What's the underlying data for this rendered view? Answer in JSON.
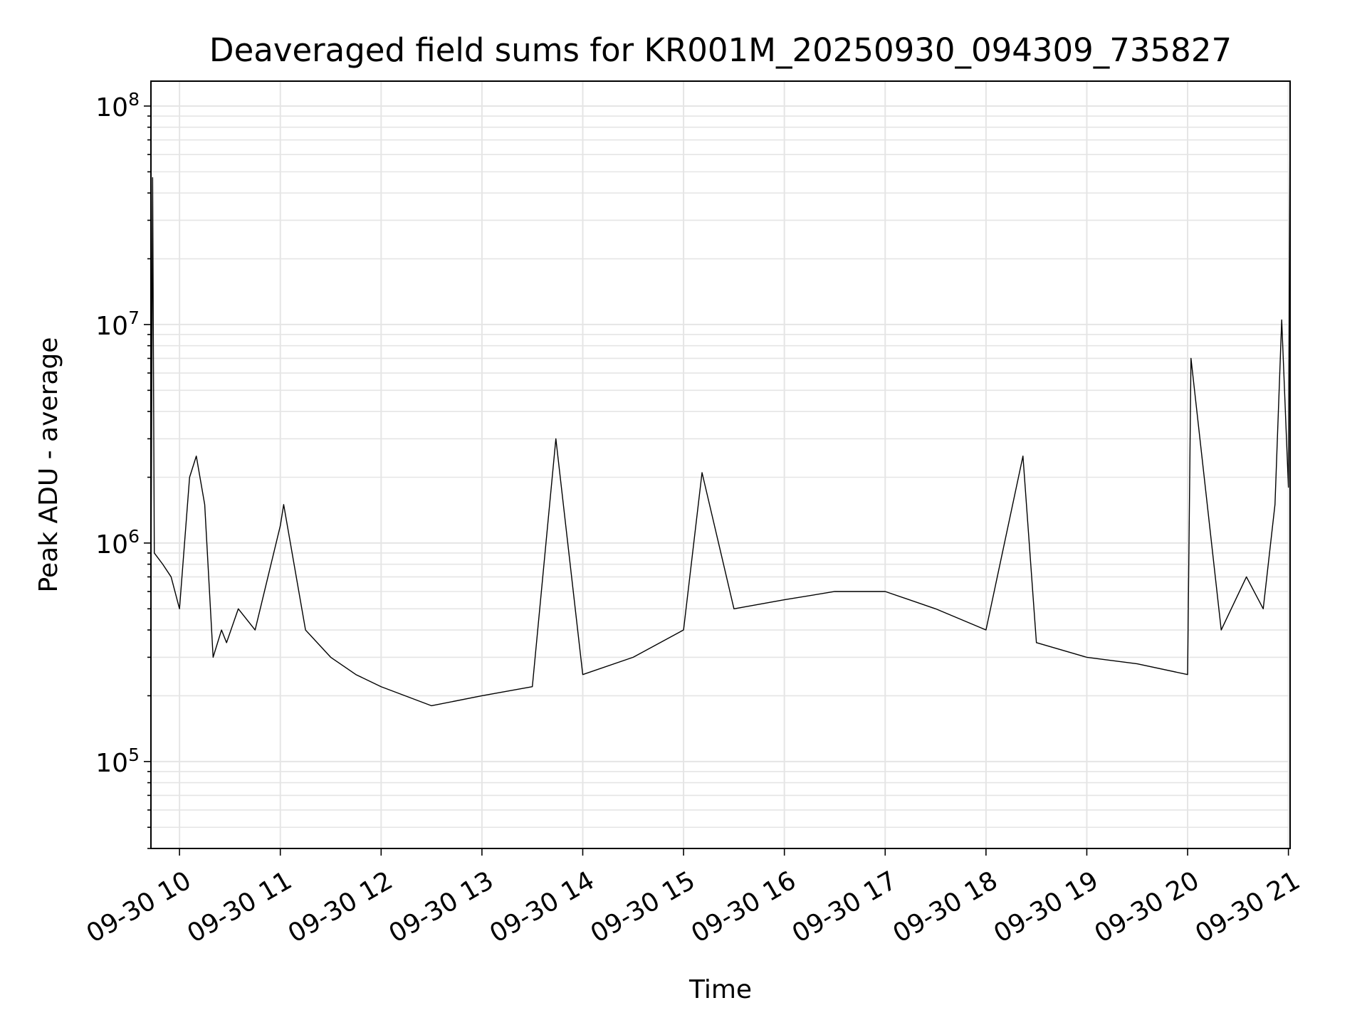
{
  "chart_data": {
    "type": "line",
    "title": "Deaveraged field sums for KR001M_20250930_094309_735827",
    "xlabel": "Time",
    "ylabel": "Peak ADU - average",
    "yscale": "log",
    "ylim": [
      40000,
      130000000
    ],
    "xlim": [
      "2025-09-30 09:43",
      "2025-09-30 21:01"
    ],
    "grid": true,
    "x_ticks": [
      "09-30 10",
      "09-30 11",
      "09-30 12",
      "09-30 13",
      "09-30 14",
      "09-30 15",
      "09-30 16",
      "09-30 17",
      "09-30 18",
      "09-30 19",
      "09-30 20",
      "09-30 21"
    ],
    "y_ticks": [
      {
        "base": "10",
        "exp": "5"
      },
      {
        "base": "10",
        "exp": "6"
      },
      {
        "base": "10",
        "exp": "7"
      },
      {
        "base": "10",
        "exp": "8"
      }
    ],
    "line_color": "#000000",
    "series": [
      {
        "x": [
          "2025-09-30 09:43",
          "2025-09-30 09:44",
          "2025-09-30 09:45",
          "2025-09-30 09:50",
          "2025-09-30 09:55",
          "2025-09-30 10:00",
          "2025-09-30 10:06",
          "2025-09-30 10:10",
          "2025-09-30 10:15",
          "2025-09-30 10:20",
          "2025-09-30 10:25",
          "2025-09-30 10:28",
          "2025-09-30 10:35",
          "2025-09-30 10:45",
          "2025-09-30 11:00",
          "2025-09-30 11:02",
          "2025-09-30 11:15",
          "2025-09-30 11:30",
          "2025-09-30 11:45",
          "2025-09-30 12:00",
          "2025-09-30 12:30",
          "2025-09-30 13:00",
          "2025-09-30 13:30",
          "2025-09-30 13:44",
          "2025-09-30 14:00",
          "2025-09-30 14:30",
          "2025-09-30 15:00",
          "2025-09-30 15:11",
          "2025-09-30 15:30",
          "2025-09-30 16:00",
          "2025-09-30 16:30",
          "2025-09-30 17:00",
          "2025-09-30 17:30",
          "2025-09-30 18:00",
          "2025-09-30 18:22",
          "2025-09-30 18:30",
          "2025-09-30 19:00",
          "2025-09-30 19:30",
          "2025-09-30 20:00",
          "2025-09-30 20:02",
          "2025-09-30 20:20",
          "2025-09-30 20:35",
          "2025-09-30 20:45",
          "2025-09-30 20:52",
          "2025-09-30 20:56",
          "2025-09-30 21:00",
          "2025-09-30 21:01"
        ],
        "y": [
          600000,
          47000000,
          900000,
          800000,
          700000,
          500000,
          2000000,
          2500000,
          1500000,
          300000,
          400000,
          350000,
          500000,
          400000,
          1200000,
          1500000,
          400000,
          300000,
          250000,
          220000,
          180000,
          200000,
          220000,
          3000000,
          250000,
          300000,
          400000,
          2100000,
          500000,
          550000,
          600000,
          600000,
          500000,
          400000,
          2500000,
          350000,
          300000,
          280000,
          250000,
          7000000,
          400000,
          700000,
          500000,
          1500000,
          10500000,
          1800000,
          93000000
        ]
      }
    ]
  }
}
